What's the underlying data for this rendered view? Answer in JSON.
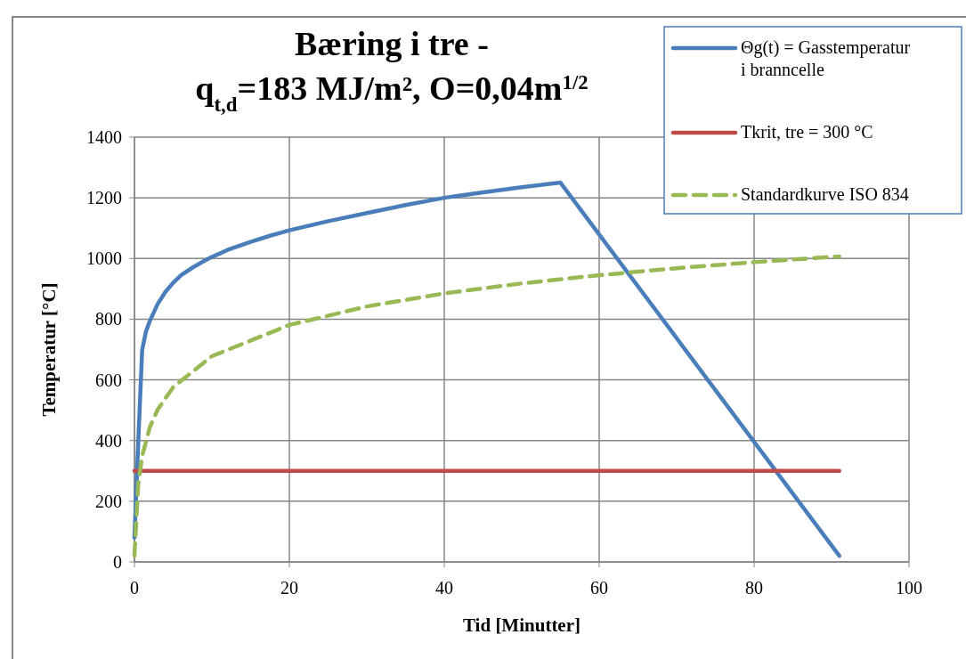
{
  "chart_data": {
    "type": "line",
    "title": "Bæring i tre -\nq$_{t,d}$=183 MJ/m², O=0,04m$^{1/2}$",
    "xlabel": "Tid [Minutter]",
    "ylabel": "Temperatur [°C]",
    "xlim": [
      0,
      100
    ],
    "xticks": [
      0,
      20,
      40,
      60,
      80,
      100
    ],
    "ylim": [
      0,
      1400
    ],
    "yticks": [
      0,
      200,
      400,
      600,
      800,
      1000,
      1200,
      1400
    ],
    "grid": true,
    "legend": "top right",
    "marker": "none",
    "series": [
      {
        "name": "Θg(t) = Gasstemperatur i branncelle",
        "color": "#4a7ebb",
        "line_style": "solid",
        "x": [
          0,
          0.5,
          1,
          1.5,
          2,
          3,
          4,
          5,
          6,
          7.5,
          9,
          10,
          12,
          15,
          17.5,
          20,
          25,
          30,
          35,
          40,
          45,
          50,
          55,
          91
        ],
        "values": [
          80,
          400,
          700,
          760,
          795,
          850,
          890,
          920,
          945,
          970,
          992,
          1005,
          1028,
          1055,
          1075,
          1093,
          1123,
          1150,
          1176,
          1200,
          1218,
          1235,
          1250,
          20
        ]
      },
      {
        "name": "Tkrit, tre = 300 °C",
        "color": "#be4b48",
        "line_style": "solid",
        "x": [
          0,
          91
        ],
        "values": [
          300,
          300
        ]
      },
      {
        "name": "Standardkurve ISO 834",
        "color": "#98b954",
        "line_style": "dashed",
        "x": [
          0,
          0.5,
          1,
          2,
          3,
          5,
          10,
          20,
          30,
          40,
          50,
          60,
          70,
          80,
          91
        ],
        "values": [
          20,
          261,
          349,
          445,
          502,
          576,
          678,
          781,
          842,
          885,
          918,
          945,
          968,
          988,
          1007
        ]
      }
    ]
  }
}
